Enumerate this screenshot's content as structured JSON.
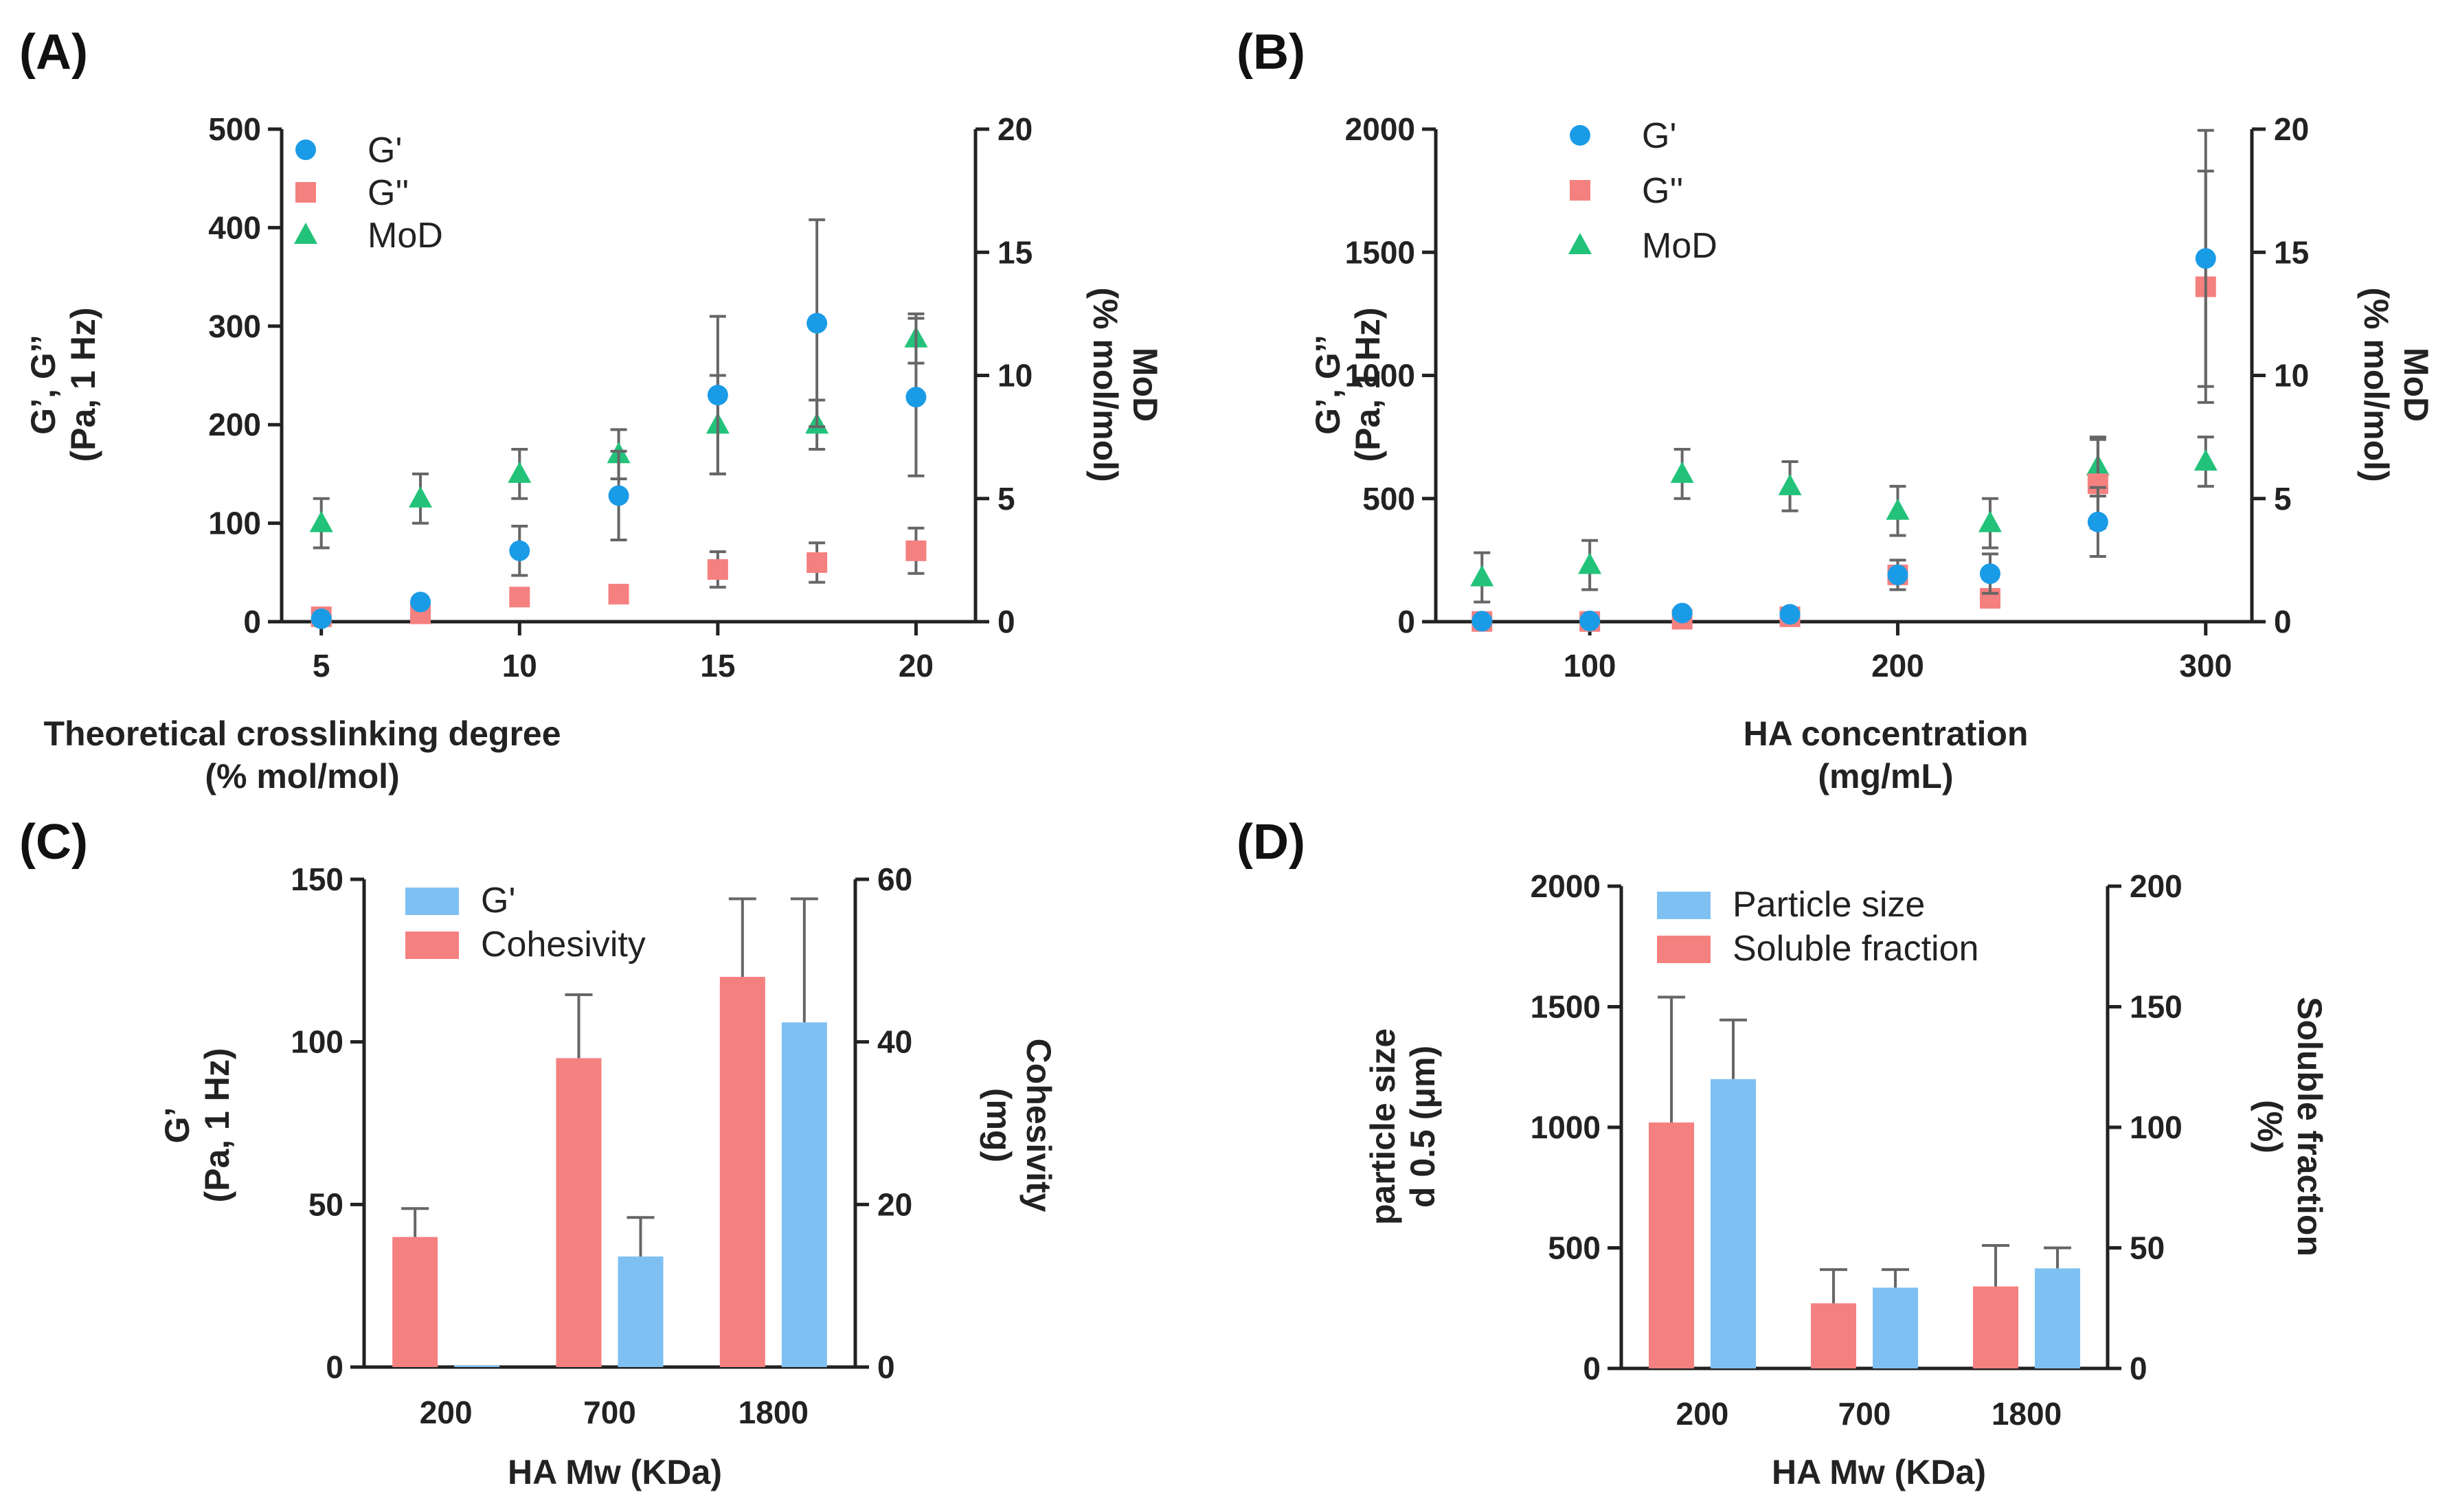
{
  "colors": {
    "gprime": "#1a9be6",
    "gdouble": "#f58080",
    "mod": "#22c27a",
    "bar_blue": "#7fc0f2",
    "bar_red": "#f58080"
  },
  "chart_data": [
    {
      "id": "A",
      "panel_label": "(A)",
      "type": "scatter",
      "xlabel": [
        "Theoretical crosslinking degree",
        "(% mol/mol)"
      ],
      "ylabel_left": [
        "G’, G’’",
        "(Pa, 1 Hz)"
      ],
      "ylabel_right": [
        "MoD",
        "(% mol/mol)"
      ],
      "xlim": [
        4,
        21.5
      ],
      "ylim_left": [
        0,
        500
      ],
      "ylim_right": [
        0,
        20
      ],
      "xticks": [
        5,
        10,
        15,
        20
      ],
      "yticks_left": [
        0,
        100,
        200,
        300,
        400,
        500
      ],
      "yticks_right": [
        0,
        5,
        10,
        15,
        20
      ],
      "legend": [
        "G'",
        "G''",
        "MoD"
      ],
      "series": [
        {
          "name": "G'",
          "axis": "left",
          "marker": "circle",
          "color_key": "gprime",
          "x": [
            5,
            7.5,
            10,
            12.5,
            15,
            17.5,
            20
          ],
          "y": [
            3,
            20,
            72,
            128,
            230,
            303,
            228
          ],
          "err": [
            0,
            0,
            25,
            45,
            80,
            105,
            80
          ]
        },
        {
          "name": "G''",
          "axis": "left",
          "marker": "square",
          "color_key": "gdouble",
          "x": [
            5,
            7.5,
            10,
            12.5,
            15,
            17.5,
            20
          ],
          "y": [
            5,
            8,
            25,
            28,
            53,
            60,
            72
          ],
          "err": [
            0,
            0,
            0,
            0,
            18,
            20,
            23
          ]
        },
        {
          "name": "MoD",
          "axis": "right",
          "marker": "triangle",
          "color_key": "mod",
          "x": [
            5,
            7.5,
            10,
            12.5,
            15,
            17.5,
            20
          ],
          "y": [
            4.0,
            5.0,
            6.0,
            6.8,
            8.0,
            8.0,
            11.5
          ],
          "err": [
            1.0,
            1.0,
            1.0,
            1.0,
            2.0,
            1.0,
            1.0
          ]
        }
      ]
    },
    {
      "id": "B",
      "panel_label": "(B)",
      "type": "scatter",
      "xlabel": [
        "HA concentration",
        "(mg/mL)"
      ],
      "ylabel_left": [
        "G’, G’’",
        "(Pa, 1 Hz)"
      ],
      "ylabel_right": [
        "MoD",
        "(% mol/mol)"
      ],
      "xlim": [
        50,
        315
      ],
      "ylim_left": [
        0,
        2000
      ],
      "ylim_right": [
        0,
        20
      ],
      "xticks": [
        100,
        200,
        300
      ],
      "yticks_left": [
        0,
        500,
        1000,
        1500,
        2000
      ],
      "yticks_right": [
        0,
        5,
        10,
        15,
        20
      ],
      "legend": [
        "G'",
        "G''",
        "MoD"
      ],
      "series": [
        {
          "name": "G'",
          "axis": "left",
          "marker": "circle",
          "color_key": "gprime",
          "x": [
            65,
            100,
            130,
            165,
            200,
            230,
            265,
            300
          ],
          "y": [
            2,
            3,
            35,
            30,
            190,
            195,
            405,
            1475
          ],
          "err": [
            0,
            0,
            0,
            0,
            60,
            80,
            140,
            520
          ]
        },
        {
          "name": "G''",
          "axis": "left",
          "marker": "square",
          "color_key": "gdouble",
          "x": [
            65,
            100,
            130,
            165,
            200,
            230,
            265,
            300
          ],
          "y": [
            1,
            1,
            10,
            20,
            190,
            95,
            560,
            1360
          ],
          "err": [
            0,
            0,
            0,
            0,
            0,
            0,
            180,
            470
          ]
        },
        {
          "name": "MoD",
          "axis": "right",
          "marker": "triangle",
          "color_key": "mod",
          "x": [
            65,
            100,
            130,
            165,
            200,
            230,
            265,
            300
          ],
          "y": [
            1.8,
            2.3,
            6.0,
            5.5,
            4.5,
            4.0,
            6.3,
            6.5
          ],
          "err": [
            1.0,
            1.0,
            1.0,
            1.0,
            1.0,
            1.0,
            1.2,
            1.0
          ]
        }
      ]
    },
    {
      "id": "C",
      "panel_label": "(C)",
      "type": "bar",
      "categories": [
        "200",
        "700",
        "1800"
      ],
      "xlabel": [
        "HA Mw (KDa)"
      ],
      "ylabel_left": [
        "G’",
        "(Pa, 1 Hz)"
      ],
      "ylabel_right": [
        "Cohesivity",
        "(mg)"
      ],
      "ylim_left": [
        0,
        150
      ],
      "ylim_right": [
        0,
        60
      ],
      "yticks_left": [
        0,
        50,
        100,
        150
      ],
      "yticks_right": [
        0,
        20,
        40,
        60
      ],
      "legend": [
        "G'",
        "Cohesivity"
      ],
      "series": [
        {
          "name": "Cohesivity",
          "axis": "right",
          "color_key": "bar_red",
          "slot": 0,
          "values": [
            16,
            38,
            48
          ],
          "err": [
            3.5,
            7.8,
            9.6
          ]
        },
        {
          "name": "G'",
          "axis": "left",
          "color_key": "bar_blue",
          "slot": 1,
          "values": [
            0.5,
            34,
            106
          ],
          "err": [
            0,
            12,
            38
          ]
        }
      ]
    },
    {
      "id": "D",
      "panel_label": "(D)",
      "type": "bar",
      "categories": [
        "200",
        "700",
        "1800"
      ],
      "xlabel": [
        "HA Mw (KDa)"
      ],
      "ylabel_left": [
        "particle size",
        "d 0.5 (μm)"
      ],
      "ylabel_right": [
        "Soluble fraction",
        "(%)"
      ],
      "ylim_left": [
        0,
        2000
      ],
      "ylim_right": [
        0,
        200
      ],
      "yticks_left": [
        0,
        500,
        1000,
        1500,
        2000
      ],
      "yticks_right": [
        0,
        50,
        100,
        150,
        200
      ],
      "legend": [
        "Particle size",
        "Soluble fraction"
      ],
      "series": [
        {
          "name": "Soluble fraction",
          "axis": "right",
          "color_key": "bar_red",
          "slot": 0,
          "values": [
            102,
            27,
            34
          ],
          "err": [
            52,
            14,
            17
          ]
        },
        {
          "name": "Particle size",
          "axis": "left",
          "color_key": "bar_blue",
          "slot": 1,
          "values": [
            1200,
            335,
            415
          ],
          "err": [
            245,
            75,
            85
          ]
        }
      ]
    }
  ]
}
